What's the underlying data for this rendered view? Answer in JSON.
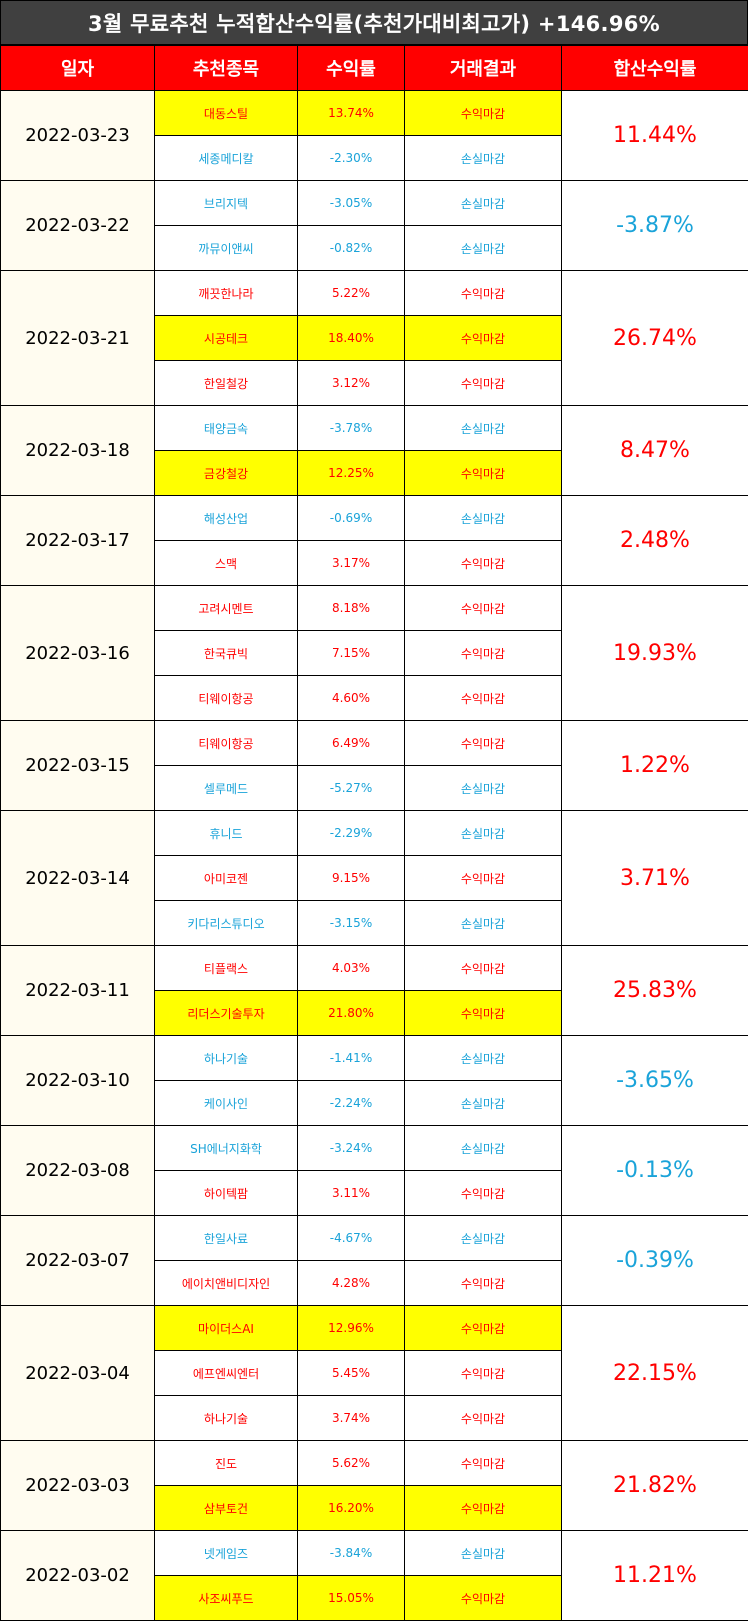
{
  "title": "3월 무료추천 누적합산수익률(추천가대비최고가) +146.96%",
  "headers": [
    "일자",
    "추천종목",
    "수익률",
    "거래결과",
    "합산수익률"
  ],
  "colors": {
    "positive": "#ff0000",
    "negative": "#1aa3d9",
    "highlight": "#ffff00",
    "header": "#ff0000"
  },
  "groups": [
    {
      "date": "2022-03-23",
      "total": "11.44%",
      "total_sign": "pos",
      "rows": [
        {
          "name": "대동스틸",
          "ret": "13.74%",
          "result": "수익마감",
          "sign": "pos",
          "hl": true
        },
        {
          "name": "세종메디칼",
          "ret": "-2.30%",
          "result": "손실마감",
          "sign": "neg",
          "hl": false
        }
      ]
    },
    {
      "date": "2022-03-22",
      "total": "-3.87%",
      "total_sign": "neg",
      "rows": [
        {
          "name": "브리지텍",
          "ret": "-3.05%",
          "result": "손실마감",
          "sign": "neg",
          "hl": false
        },
        {
          "name": "까뮤이앤씨",
          "ret": "-0.82%",
          "result": "손실마감",
          "sign": "neg",
          "hl": false
        }
      ]
    },
    {
      "date": "2022-03-21",
      "total": "26.74%",
      "total_sign": "pos",
      "rows": [
        {
          "name": "깨끗한나라",
          "ret": "5.22%",
          "result": "수익마감",
          "sign": "pos",
          "hl": false
        },
        {
          "name": "시공테크",
          "ret": "18.40%",
          "result": "수익마감",
          "sign": "pos",
          "hl": true
        },
        {
          "name": "한일철강",
          "ret": "3.12%",
          "result": "수익마감",
          "sign": "pos",
          "hl": false
        }
      ]
    },
    {
      "date": "2022-03-18",
      "total": "8.47%",
      "total_sign": "pos",
      "rows": [
        {
          "name": "태양금속",
          "ret": "-3.78%",
          "result": "손실마감",
          "sign": "neg",
          "hl": false
        },
        {
          "name": "금강철강",
          "ret": "12.25%",
          "result": "수익마감",
          "sign": "pos",
          "hl": true
        }
      ]
    },
    {
      "date": "2022-03-17",
      "total": "2.48%",
      "total_sign": "pos",
      "rows": [
        {
          "name": "해성산업",
          "ret": "-0.69%",
          "result": "손실마감",
          "sign": "neg",
          "hl": false
        },
        {
          "name": "스맥",
          "ret": "3.17%",
          "result": "수익마감",
          "sign": "pos",
          "hl": false
        }
      ]
    },
    {
      "date": "2022-03-16",
      "total": "19.93%",
      "total_sign": "pos",
      "rows": [
        {
          "name": "고려시멘트",
          "ret": "8.18%",
          "result": "수익마감",
          "sign": "pos",
          "hl": false
        },
        {
          "name": "한국큐빅",
          "ret": "7.15%",
          "result": "수익마감",
          "sign": "pos",
          "hl": false
        },
        {
          "name": "티웨이항공",
          "ret": "4.60%",
          "result": "수익마감",
          "sign": "pos",
          "hl": false
        }
      ]
    },
    {
      "date": "2022-03-15",
      "total": "1.22%",
      "total_sign": "pos",
      "rows": [
        {
          "name": "티웨이항공",
          "ret": "6.49%",
          "result": "수익마감",
          "sign": "pos",
          "hl": false
        },
        {
          "name": "셀루메드",
          "ret": "-5.27%",
          "result": "손실마감",
          "sign": "neg",
          "hl": false
        }
      ]
    },
    {
      "date": "2022-03-14",
      "total": "3.71%",
      "total_sign": "pos",
      "rows": [
        {
          "name": "휴니드",
          "ret": "-2.29%",
          "result": "손실마감",
          "sign": "neg",
          "hl": false
        },
        {
          "name": "아미코젠",
          "ret": "9.15%",
          "result": "수익마감",
          "sign": "pos",
          "hl": false
        },
        {
          "name": "키다리스튜디오",
          "ret": "-3.15%",
          "result": "손실마감",
          "sign": "neg",
          "hl": false
        }
      ]
    },
    {
      "date": "2022-03-11",
      "total": "25.83%",
      "total_sign": "pos",
      "rows": [
        {
          "name": "티플랙스",
          "ret": "4.03%",
          "result": "수익마감",
          "sign": "pos",
          "hl": false
        },
        {
          "name": "리더스기술투자",
          "ret": "21.80%",
          "result": "수익마감",
          "sign": "pos",
          "hl": true
        }
      ]
    },
    {
      "date": "2022-03-10",
      "total": "-3.65%",
      "total_sign": "neg",
      "rows": [
        {
          "name": "하나기술",
          "ret": "-1.41%",
          "result": "손실마감",
          "sign": "neg",
          "hl": false
        },
        {
          "name": "케이사인",
          "ret": "-2.24%",
          "result": "손실마감",
          "sign": "neg",
          "hl": false
        }
      ]
    },
    {
      "date": "2022-03-08",
      "total": "-0.13%",
      "total_sign": "neg",
      "rows": [
        {
          "name": "SH에너지화학",
          "ret": "-3.24%",
          "result": "손실마감",
          "sign": "neg",
          "hl": false
        },
        {
          "name": "하이텍팜",
          "ret": "3.11%",
          "result": "수익마감",
          "sign": "pos",
          "hl": false
        }
      ]
    },
    {
      "date": "2022-03-07",
      "total": "-0.39%",
      "total_sign": "neg",
      "rows": [
        {
          "name": "한일사료",
          "ret": "-4.67%",
          "result": "손실마감",
          "sign": "neg",
          "hl": false
        },
        {
          "name": "에이치앤비디자인",
          "ret": "4.28%",
          "result": "수익마감",
          "sign": "pos",
          "hl": false
        }
      ]
    },
    {
      "date": "2022-03-04",
      "total": "22.15%",
      "total_sign": "pos",
      "rows": [
        {
          "name": "마이더스AI",
          "ret": "12.96%",
          "result": "수익마감",
          "sign": "pos",
          "hl": true
        },
        {
          "name": "에프엔씨엔터",
          "ret": "5.45%",
          "result": "수익마감",
          "sign": "pos",
          "hl": false
        },
        {
          "name": "하나기술",
          "ret": "3.74%",
          "result": "수익마감",
          "sign": "pos",
          "hl": false
        }
      ]
    },
    {
      "date": "2022-03-03",
      "total": "21.82%",
      "total_sign": "pos",
      "rows": [
        {
          "name": "진도",
          "ret": "5.62%",
          "result": "수익마감",
          "sign": "pos",
          "hl": false
        },
        {
          "name": "삼부토건",
          "ret": "16.20%",
          "result": "수익마감",
          "sign": "pos",
          "hl": true
        }
      ]
    },
    {
      "date": "2022-03-02",
      "total": "11.21%",
      "total_sign": "pos",
      "rows": [
        {
          "name": "넷게임즈",
          "ret": "-3.84%",
          "result": "손실마감",
          "sign": "neg",
          "hl": false
        },
        {
          "name": "사조씨푸드",
          "ret": "15.05%",
          "result": "수익마감",
          "sign": "pos",
          "hl": true
        }
      ]
    }
  ]
}
